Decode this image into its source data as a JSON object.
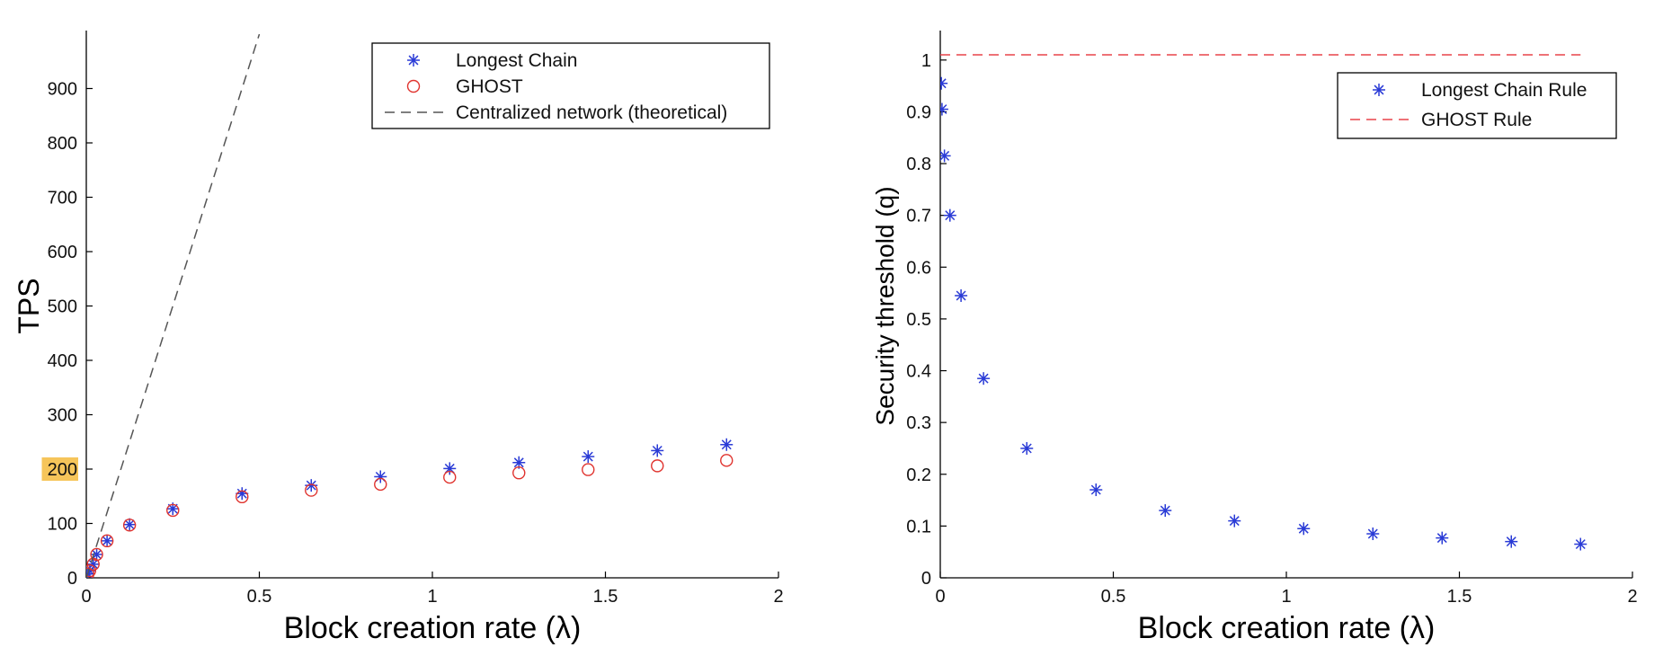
{
  "chart_data": [
    {
      "type": "scatter",
      "xlabel": "Block creation rate (λ)",
      "ylabel": "TPS",
      "xlim": [
        0,
        2
      ],
      "ylim": [
        0,
        1000
      ],
      "xticks": [
        0,
        0.5,
        1,
        1.5,
        2
      ],
      "xtick_labels": [
        "0",
        "0.5",
        "1",
        "1.5",
        "2"
      ],
      "yticks": [
        0,
        100,
        200,
        300,
        400,
        500,
        600,
        700,
        800,
        900
      ],
      "ytick_labels": [
        "0",
        "100",
        "200",
        "300",
        "400",
        "500",
        "600",
        "700",
        "800",
        "900"
      ],
      "highlighted_ytick": "200",
      "highlight_color": "#f6c55a",
      "grid": false,
      "legend_position": "top-right",
      "series": [
        {
          "name": "Longest Chain",
          "marker": "asterisk",
          "color": "#2a3bd6",
          "x": [
            0.005,
            0.01,
            0.02,
            0.03,
            0.06,
            0.125,
            0.25,
            0.45,
            0.65,
            0.85,
            1.05,
            1.25,
            1.45,
            1.65,
            1.85
          ],
          "y": [
            7,
            13,
            25,
            43,
            68,
            98,
            127,
            155,
            170,
            186,
            201,
            212,
            223,
            234,
            245
          ]
        },
        {
          "name": "GHOST",
          "marker": "circle",
          "color": "#e0342f",
          "x": [
            0.005,
            0.01,
            0.02,
            0.03,
            0.06,
            0.125,
            0.25,
            0.45,
            0.65,
            0.85,
            1.05,
            1.25,
            1.45,
            1.65,
            1.85
          ],
          "y": [
            7,
            13,
            25,
            43,
            68,
            97,
            124,
            149,
            161,
            172,
            185,
            193,
            199,
            206,
            216
          ]
        },
        {
          "name": "Centralized network (theoretical)",
          "marker": "dashed-line",
          "color": "#555555",
          "x": [
            0,
            0.5
          ],
          "y": [
            0,
            1000
          ]
        }
      ]
    },
    {
      "type": "scatter",
      "xlabel": "Block creation rate (λ)",
      "ylabel": "Security threshold (q)",
      "xlim": [
        0,
        2
      ],
      "ylim": [
        0,
        1.05
      ],
      "xticks": [
        0,
        0.5,
        1,
        1.5,
        2
      ],
      "xtick_labels": [
        "0",
        "0.5",
        "1",
        "1.5",
        "2"
      ],
      "yticks": [
        0,
        0.1,
        0.2,
        0.3,
        0.4,
        0.5,
        0.6,
        0.7,
        0.8,
        0.9,
        1
      ],
      "ytick_labels": [
        "0",
        "0.1",
        "0.2",
        "0.3",
        "0.4",
        "0.5",
        "0.6",
        "0.7",
        "0.8",
        "0.9",
        "1"
      ],
      "grid": false,
      "legend_position": "top-right",
      "series": [
        {
          "name": "Longest Chain Rule",
          "marker": "asterisk",
          "color": "#2a3bd6",
          "x": [
            0.003,
            0.005,
            0.012,
            0.028,
            0.06,
            0.125,
            0.25,
            0.45,
            0.65,
            0.85,
            1.05,
            1.25,
            1.45,
            1.65,
            1.85
          ],
          "y": [
            0.955,
            0.905,
            0.815,
            0.7,
            0.545,
            0.385,
            0.25,
            0.17,
            0.13,
            0.11,
            0.095,
            0.085,
            0.077,
            0.07,
            0.065
          ]
        },
        {
          "name": "GHOST Rule",
          "marker": "dashed-line",
          "color": "#e8434a",
          "x": [
            0,
            1.85
          ],
          "y": [
            1.01,
            1.01
          ]
        }
      ]
    }
  ]
}
